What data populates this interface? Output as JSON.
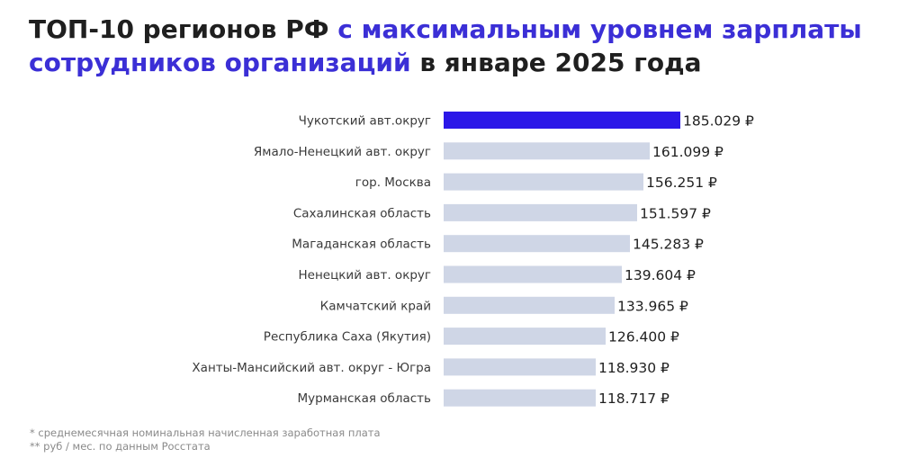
{
  "title": {
    "part1": "ТОП-10 регионов РФ ",
    "part2": "с максимальным уровнем зарплаты сотрудников организаций",
    "part3": " в январе 2025 года"
  },
  "colors": {
    "accent": "#3b2fd6",
    "highlight_bar": "#2b17e8",
    "bar": "#cfd6e6",
    "text": "#1f1f1f"
  },
  "chart_data": {
    "type": "bar",
    "orientation": "horizontal",
    "categories": [
      "Чукотский авт.округ",
      "Ямало-Ненецкий авт. округ",
      "гор. Москва",
      "Сахалинская область",
      "Магаданская область",
      "Ненецкий авт. округ",
      "Камчатский край",
      "Республика Саха (Якутия)",
      "Ханты-Мансийский авт. округ - Югра",
      "Мурманская область"
    ],
    "values": [
      185029,
      161099,
      156251,
      151597,
      145283,
      139604,
      133965,
      126400,
      118930,
      118717
    ],
    "value_labels": [
      "185.029 ₽",
      "161.099 ₽",
      "156.251 ₽",
      "151.597 ₽",
      "145.283 ₽",
      "139.604 ₽",
      "133.965 ₽",
      "126.400 ₽",
      "118.930 ₽",
      "118.717 ₽"
    ],
    "highlight_index": 0,
    "xlim": [
      0,
      185029
    ],
    "grid": false,
    "legend": "none"
  },
  "footnotes": [
    "* среднемесячная номинальная начисленная заработная плата",
    "** руб / мес. по данным Росстата"
  ]
}
